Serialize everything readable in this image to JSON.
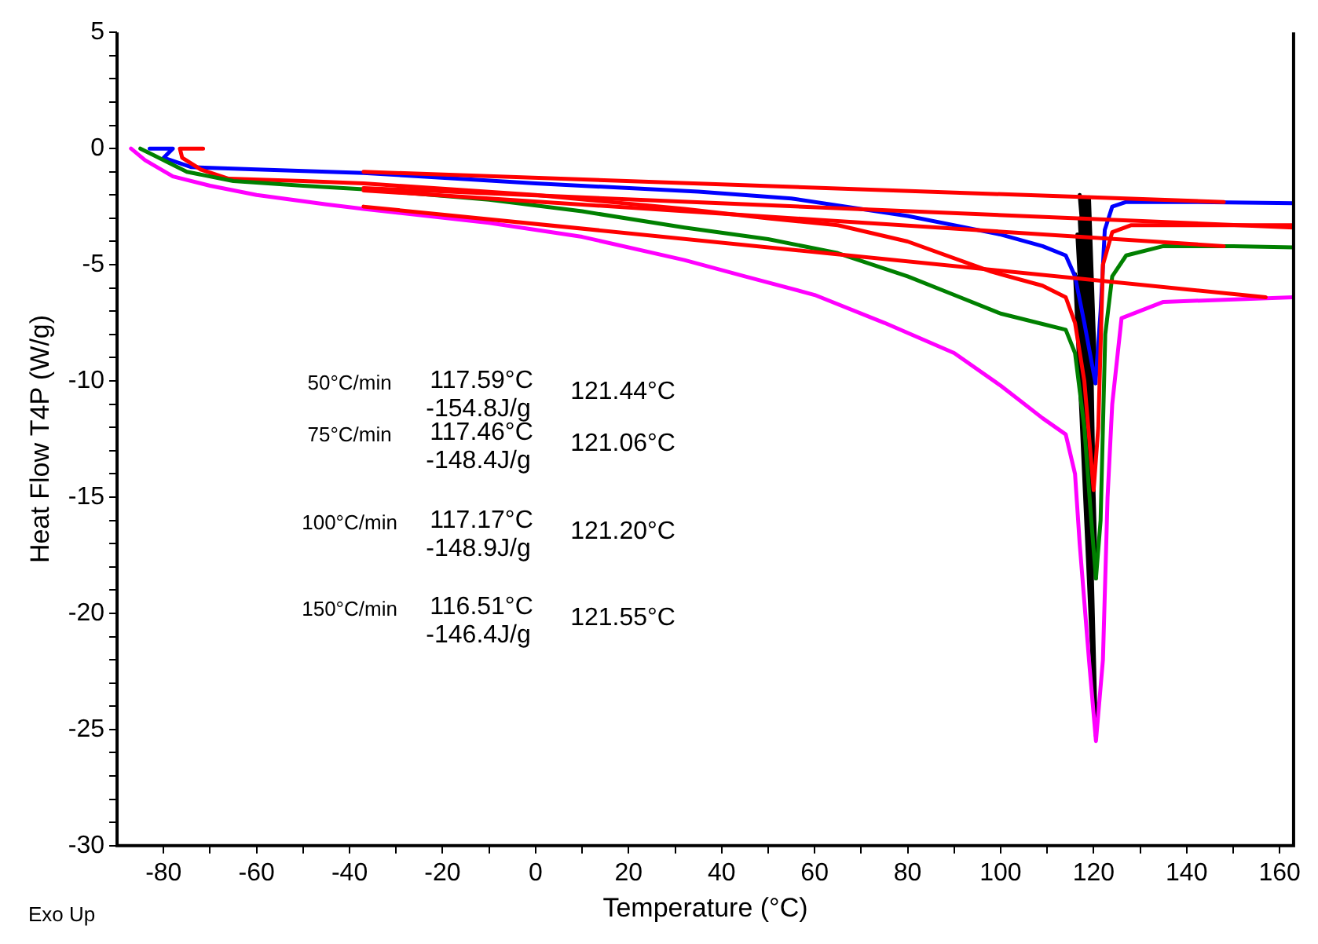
{
  "chart_data": {
    "type": "line",
    "xlabel": "Temperature (°C)",
    "ylabel": "Heat Flow T4P (W/g)",
    "marker": "none",
    "xlim": [
      -90,
      163
    ],
    "ylim": [
      -30,
      5
    ],
    "xticks": [
      -80,
      {
        "value": -70,
        "label": null
      },
      -60,
      {
        "value": -50,
        "label": null
      },
      -40,
      {
        "value": -30,
        "label": null
      },
      -20,
      {
        "value": -10,
        "label": null
      },
      0,
      {
        "value": 10,
        "label": null
      },
      20,
      {
        "value": 30,
        "label": null
      },
      40,
      {
        "value": 50,
        "label": null
      },
      60,
      {
        "value": 70,
        "label": null
      },
      80,
      {
        "value": 90,
        "label": null
      },
      100,
      {
        "value": 110,
        "label": null
      },
      120,
      {
        "value": 130,
        "label": null
      },
      140,
      {
        "value": 150,
        "label": null
      },
      160
    ],
    "yticks": [
      -30,
      {
        "value": -29,
        "label": null
      },
      {
        "value": -28,
        "label": null
      },
      {
        "value": -27,
        "label": null
      },
      {
        "value": -26,
        "label": null
      },
      -25,
      {
        "value": -24,
        "label": null
      },
      {
        "value": -23,
        "label": null
      },
      {
        "value": -22,
        "label": null
      },
      {
        "value": -21,
        "label": null
      },
      -20,
      {
        "value": -19,
        "label": null
      },
      {
        "value": -18,
        "label": null
      },
      {
        "value": -17,
        "label": null
      },
      {
        "value": -16,
        "label": null
      },
      -15,
      {
        "value": -14,
        "label": null
      },
      {
        "value": -13,
        "label": null
      },
      {
        "value": -12,
        "label": null
      },
      {
        "value": -11,
        "label": null
      },
      -10,
      {
        "value": -9,
        "label": null
      },
      {
        "value": -8,
        "label": null
      },
      {
        "value": -7,
        "label": null
      },
      {
        "value": -6,
        "label": null
      },
      -5,
      {
        "value": -4,
        "label": null
      },
      {
        "value": -3,
        "label": null
      },
      {
        "value": -2,
        "label": null
      },
      {
        "value": -1,
        "label": null
      },
      0,
      {
        "value": 1,
        "label": null
      },
      {
        "value": 2,
        "label": null
      },
      {
        "value": 3,
        "label": null
      },
      {
        "value": 4,
        "label": null
      },
      5
    ],
    "series": [
      {
        "type": "line",
        "color": "#0000ff",
        "x": [
          -83,
          -78,
          -80,
          -74,
          -60,
          -37,
          0,
          35,
          55,
          80,
          100,
          109,
          114,
          116,
          118,
          120.4,
          121.5,
          122.4,
          124,
          127,
          140,
          163
        ],
        "values": [
          0,
          0,
          -0.4,
          -0.8,
          -0.9,
          -1.05,
          -1.5,
          -1.85,
          -2.15,
          -2.9,
          -3.7,
          -4.2,
          -4.6,
          -5.5,
          -7.5,
          -10.1,
          -7,
          -3.5,
          -2.5,
          -2.3,
          -2.3,
          -2.35
        ]
      },
      {
        "type": "line",
        "color": "#ff0000",
        "x": [
          -71.5,
          -76.5,
          -76,
          -72,
          -66,
          -50,
          -37,
          0,
          32,
          50,
          65,
          80,
          98,
          109,
          114,
          116,
          118,
          120,
          121,
          122,
          124,
          128,
          163
        ],
        "values": [
          0,
          0,
          -0.4,
          -0.9,
          -1.3,
          -1.4,
          -1.5,
          -2,
          -2.6,
          -3,
          -3.3,
          -4,
          -5.3,
          -5.9,
          -6.4,
          -7.5,
          -10,
          -14.7,
          -12,
          -5,
          -3.6,
          -3.3,
          -3.3
        ]
      },
      {
        "type": "line",
        "color": "#008000",
        "x": [
          -85,
          -82,
          -75,
          -65,
          -50,
          -37,
          -10,
          10,
          32,
          50,
          65,
          80,
          90,
          100,
          110,
          114,
          116,
          118,
          119.5,
          120.5,
          121.5,
          122.5,
          124,
          127,
          135,
          150,
          163
        ],
        "values": [
          0,
          -0.3,
          -1,
          -1.4,
          -1.6,
          -1.75,
          -2.2,
          -2.7,
          -3.4,
          -3.9,
          -4.5,
          -5.5,
          -6.3,
          -7.1,
          -7.6,
          -7.8,
          -8.8,
          -12,
          -16,
          -18.5,
          -16,
          -8,
          -5.5,
          -4.6,
          -4.2,
          -4.2,
          -4.25
        ]
      },
      {
        "type": "line",
        "color": "#ff00ff",
        "x": [
          -87,
          -84,
          -78,
          -70,
          -60,
          -45,
          -37,
          -10,
          10,
          32,
          45,
          60,
          75,
          90,
          100,
          109,
          114,
          116,
          117,
          119,
          120.5,
          122,
          123,
          124,
          126,
          135,
          163
        ],
        "values": [
          0,
          -0.5,
          -1.2,
          -1.6,
          -2,
          -2.4,
          -2.6,
          -3.2,
          -3.8,
          -4.8,
          -5.5,
          -6.3,
          -7.5,
          -8.8,
          -10.2,
          -11.6,
          -12.3,
          -14,
          -17,
          -22,
          -25.5,
          -22,
          -15,
          -11,
          -7.3,
          -6.6,
          -6.4
        ]
      },
      {
        "type": "line",
        "color": "#ff0000",
        "x": [
          -37,
          148
        ],
        "values": [
          -1,
          -2.3
        ]
      },
      {
        "type": "line",
        "color": "#ff0000",
        "x": [
          -37,
          163
        ],
        "values": [
          -1.7,
          -3.4
        ]
      },
      {
        "type": "line",
        "color": "#ff0000",
        "x": [
          -37,
          148
        ],
        "values": [
          -1.8,
          -4.2
        ]
      },
      {
        "type": "line",
        "color": "#ff0000",
        "x": [
          -37,
          157
        ],
        "values": [
          -2.5,
          -6.4
        ]
      },
      {
        "type": "area",
        "color": "#000000",
        "x": [
          117,
          120.4,
          119
        ],
        "values": [
          -2,
          -10.1,
          -2.1
        ]
      },
      {
        "type": "area",
        "color": "#000000",
        "x": [
          117,
          120,
          119
        ],
        "values": [
          -3,
          -14.7,
          -3.2
        ]
      },
      {
        "type": "area",
        "color": "#000000",
        "x": [
          116.5,
          120.5,
          118.5
        ],
        "values": [
          -3.7,
          -18.5,
          -3.9
        ]
      },
      {
        "type": "area",
        "color": "#000000",
        "x": [
          116,
          120.5,
          118
        ],
        "values": [
          -5.4,
          -25.3,
          -5.6
        ]
      }
    ],
    "annotations": [
      "50°C/min",
      "117.59°C",
      "-154.8J/g",
      "121.44°C",
      "75°C/min",
      "117.46°C",
      "-148.4J/g",
      "121.06°C",
      "100°C/min",
      "117.17°C",
      "-148.9J/g",
      "121.20°C",
      "150°C/min",
      "116.51°C",
      "-146.4J/g",
      "121.55°C",
      "Exo Up"
    ]
  }
}
